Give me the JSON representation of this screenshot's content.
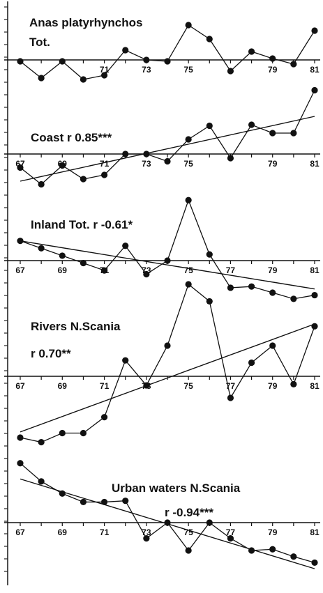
{
  "chart_data": [
    {
      "type": "line",
      "label_lines": [
        "Anas platyrhynchos",
        "Tot."
      ],
      "x": [
        67,
        68,
        69,
        70,
        71,
        72,
        73,
        74,
        75,
        76,
        77,
        78,
        79,
        80,
        81
      ],
      "values": [
        -0.1,
        -1.3,
        -0.1,
        -1.4,
        -1.1,
        0.7,
        0.0,
        -0.1,
        2.5,
        1.5,
        -0.8,
        0.6,
        0.1,
        -0.3,
        2.1
      ],
      "xticks": [
        "71",
        "73",
        "75",
        "79",
        "81"
      ],
      "ylim": [
        -4,
        4
      ],
      "grid": false
    },
    {
      "type": "line",
      "label_lines": [
        "Coast   r 0.85***"
      ],
      "x": [
        67,
        68,
        69,
        70,
        71,
        72,
        73,
        74,
        75,
        76,
        77,
        78,
        79,
        80,
        81
      ],
      "values": [
        -1.3,
        -2.9,
        -1.1,
        -2.4,
        -2.0,
        0.0,
        0.0,
        -0.7,
        1.4,
        2.7,
        -0.4,
        2.8,
        2.0,
        2.0,
        6.1
      ],
      "trend": [
        -2.6,
        3.6
      ],
      "xticks": [
        "67",
        "69",
        "71",
        "73",
        "75",
        "79",
        "81"
      ],
      "ylim": [
        -3.5,
        7
      ],
      "grid": false
    },
    {
      "type": "line",
      "label_lines": [
        "Inland Tot.  r -0.61*"
      ],
      "x": [
        67,
        68,
        69,
        70,
        71,
        72,
        73,
        74,
        75,
        76,
        77,
        78,
        79,
        80,
        81
      ],
      "values": [
        1.6,
        1.0,
        0.4,
        -0.2,
        -0.8,
        1.2,
        -1.1,
        0.0,
        4.9,
        0.5,
        -2.2,
        -2.1,
        -2.6,
        -3.1,
        -2.8
      ],
      "trend": [
        1.6,
        -2.3
      ],
      "xticks": [
        "67",
        "69",
        "71",
        "73",
        "75",
        "77",
        "79",
        "81"
      ],
      "ylim": [
        -4,
        6
      ],
      "grid": false
    },
    {
      "type": "line",
      "label_lines": [
        "Rivers  N.Scania",
        "r  0.70**"
      ],
      "x": [
        67,
        68,
        69,
        70,
        71,
        72,
        73,
        74,
        75,
        76,
        77,
        78,
        79,
        80,
        81
      ],
      "values": [
        -5.4,
        -5.8,
        -5.0,
        -5.0,
        -3.6,
        1.4,
        -0.8,
        2.7,
        8.1,
        6.6,
        -1.9,
        1.2,
        2.7,
        -0.7,
        4.4
      ],
      "trend": [
        -4.9,
        4.6
      ],
      "xticks": [
        "67",
        "69",
        "71",
        "73",
        "75",
        "77",
        "79",
        "81"
      ],
      "ylim": [
        -6.5,
        9
      ],
      "grid": false
    },
    {
      "type": "line",
      "label_lines": [
        "Urban  waters  N.Scania",
        "r -0.94***"
      ],
      "x": [
        67,
        68,
        69,
        70,
        71,
        72,
        73,
        74,
        75,
        76,
        77,
        78,
        79,
        80,
        81
      ],
      "values": [
        4.9,
        3.4,
        2.4,
        1.7,
        1.7,
        1.8,
        -1.3,
        0.0,
        -2.3,
        0.0,
        -1.3,
        -2.3,
        -2.2,
        -2.8,
        -3.3
      ],
      "trend": [
        3.6,
        -3.8
      ],
      "xticks": [
        "67",
        "69",
        "71",
        "73",
        "75",
        "77",
        "79",
        "81"
      ],
      "ylim": [
        -4,
        6
      ],
      "grid": false
    }
  ]
}
